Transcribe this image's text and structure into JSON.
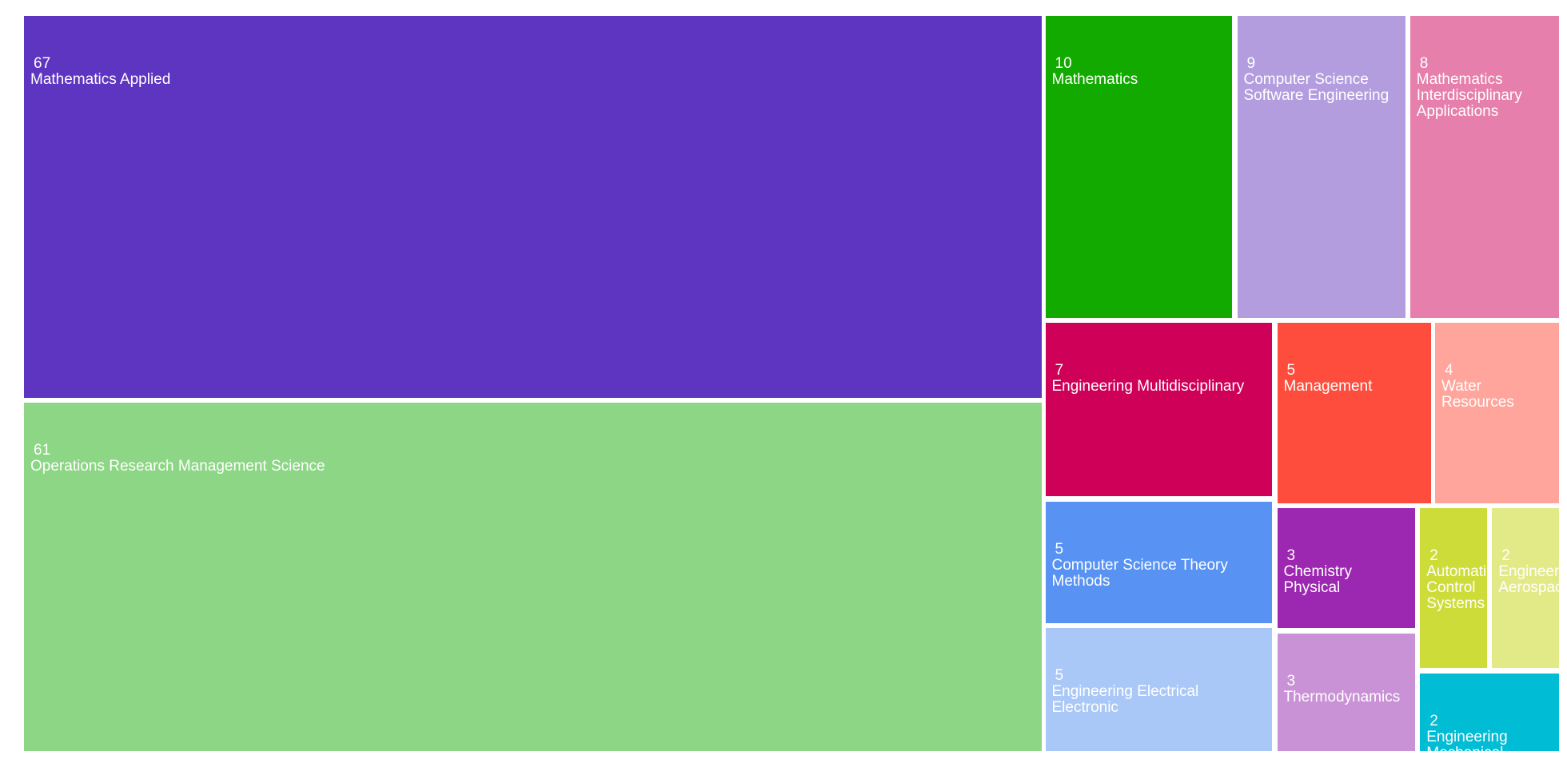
{
  "chart_data": {
    "type": "treemap",
    "categories": [
      "Mathematics Applied",
      "Operations Research Management Science",
      "Mathematics",
      "Computer Science Software Engineering",
      "Mathematics Interdisciplinary Applications",
      "Engineering Multidisciplinary",
      "Management",
      "Water Resources",
      "Computer Science Theory Methods",
      "Engineering Electrical Electronic",
      "Chemistry Physical",
      "Thermodynamics",
      "Automation Control Systems",
      "Engineering Aerospace",
      "Engineering Mechanical"
    ],
    "values": [
      67,
      61,
      10,
      9,
      8,
      7,
      5,
      4,
      5,
      5,
      3,
      3,
      2,
      2,
      2
    ],
    "colors": [
      "#5e35c1",
      "#8cd685",
      "#13aa00",
      "#b39ddf",
      "#e67fab",
      "#cf0057",
      "#ff4d3d",
      "#ffa59b",
      "#5893f4",
      "#aac8f7",
      "#9c27b0",
      "#ca92d6",
      "#cddc39",
      "#e2ea87",
      "#00bcd4"
    ]
  }
}
